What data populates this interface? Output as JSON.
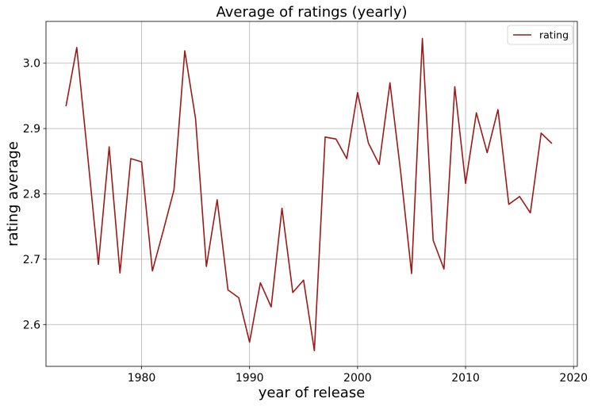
{
  "chart_data": {
    "type": "line",
    "title": "Average of ratings (yearly)",
    "xlabel": "year of release",
    "ylabel": "rating average",
    "xlim": [
      1971.15,
      2020.35
    ],
    "ylim": [
      2.536,
      3.064
    ],
    "xticks": [
      1980,
      1990,
      2000,
      2010,
      2020
    ],
    "yticks": [
      2.6,
      2.7,
      2.8,
      2.9,
      3.0
    ],
    "xtick_labels": [
      "1980",
      "1990",
      "2000",
      "2010",
      "2020"
    ],
    "ytick_labels": [
      "2.6",
      "2.7",
      "2.8",
      "2.9",
      "3.0"
    ],
    "grid": true,
    "legend_position": "top-right",
    "series": [
      {
        "name": "rating",
        "color": "#9a1b17",
        "x": [
          1973,
          1974,
          1975,
          1976,
          1977,
          1978,
          1979,
          1980,
          1981,
          1982,
          1983,
          1984,
          1985,
          1986,
          1987,
          1988,
          1989,
          1990,
          1991,
          1992,
          1993,
          1994,
          1995,
          1996,
          1997,
          1998,
          1999,
          2000,
          2001,
          2002,
          2003,
          2004,
          2005,
          2006,
          2007,
          2008,
          2009,
          2010,
          2011,
          2012,
          2013,
          2014,
          2015,
          2016,
          2017,
          2018
        ],
        "y": [
          2.934,
          3.024,
          2.86,
          2.692,
          2.872,
          2.679,
          2.854,
          2.849,
          2.682,
          2.743,
          2.806,
          3.019,
          2.915,
          2.689,
          2.791,
          2.653,
          2.641,
          2.573,
          2.664,
          2.627,
          2.778,
          2.649,
          2.668,
          2.56,
          2.887,
          2.884,
          2.854,
          2.955,
          2.878,
          2.845,
          2.97,
          2.832,
          2.678,
          3.038,
          2.729,
          2.685,
          2.964,
          2.816,
          2.924,
          2.863,
          2.929,
          2.784,
          2.796,
          2.771,
          2.893,
          2.877
        ]
      }
    ]
  }
}
